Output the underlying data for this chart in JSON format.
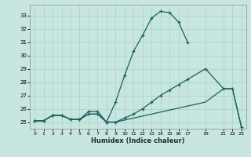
{
  "bg_color": "#c8e6e0",
  "grid_color": "#b0d4ce",
  "line_color": "#1a6060",
  "xlabel": "Humidex (Indice chaleur)",
  "xlim": [
    -0.5,
    23.5
  ],
  "ylim": [
    24.5,
    33.8
  ],
  "xticks": [
    0,
    1,
    2,
    3,
    4,
    5,
    6,
    7,
    8,
    9,
    10,
    11,
    12,
    13,
    14,
    15,
    16,
    17,
    19,
    21,
    22,
    23
  ],
  "yticks": [
    25,
    26,
    27,
    28,
    29,
    30,
    31,
    32,
    33
  ],
  "line1_x": [
    0,
    1,
    2,
    3,
    4,
    5,
    6,
    7,
    8,
    9,
    10,
    11,
    12,
    13,
    14,
    15,
    16,
    17
  ],
  "line1_y": [
    25.1,
    25.1,
    25.5,
    25.5,
    25.2,
    25.2,
    25.6,
    25.6,
    25.0,
    26.5,
    28.5,
    30.3,
    31.5,
    32.8,
    33.3,
    33.2,
    32.5,
    31.0
  ],
  "line2_x": [
    0,
    1,
    2,
    3,
    4,
    5,
    6,
    7,
    8,
    9,
    10,
    11,
    12,
    13,
    14,
    15,
    16,
    17,
    19,
    21,
    22,
    23
  ],
  "line2_y": [
    25.1,
    25.1,
    25.5,
    25.5,
    25.2,
    25.2,
    25.8,
    25.8,
    25.0,
    25.0,
    25.3,
    25.6,
    26.0,
    26.5,
    27.0,
    27.4,
    27.8,
    28.2,
    29.0,
    27.5,
    27.5,
    24.6
  ],
  "line3_x": [
    0,
    1,
    2,
    3,
    4,
    5,
    6,
    7,
    8,
    9,
    10,
    11,
    12,
    13,
    14,
    15,
    16,
    17,
    19,
    21,
    22,
    23
  ],
  "line3_y": [
    25.1,
    25.1,
    25.5,
    25.5,
    25.2,
    25.2,
    25.6,
    25.6,
    25.0,
    25.0,
    25.15,
    25.3,
    25.45,
    25.6,
    25.75,
    25.9,
    26.05,
    26.2,
    26.5,
    27.5,
    27.5,
    24.6
  ]
}
